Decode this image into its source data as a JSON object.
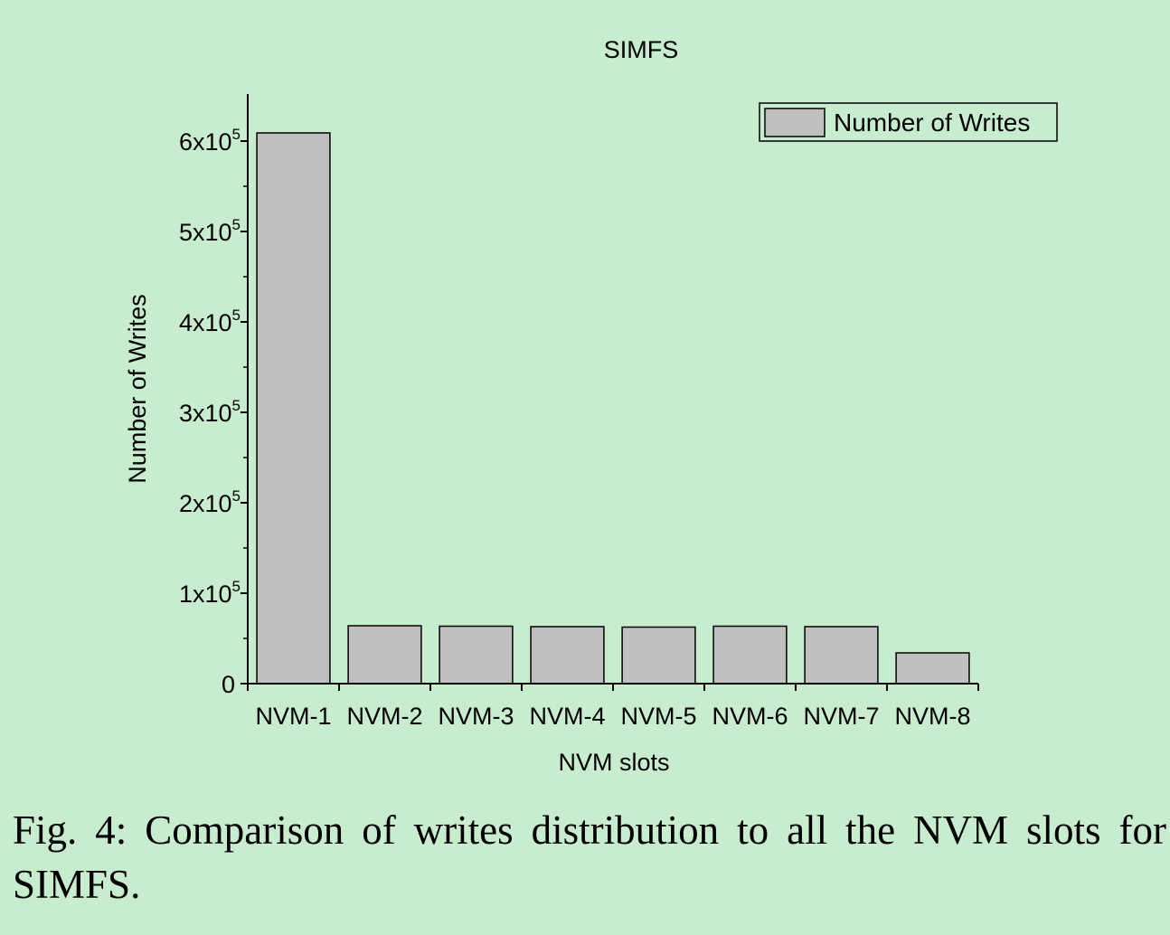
{
  "chart_data": {
    "type": "bar",
    "title": "SIMFS",
    "xlabel": "NVM slots",
    "ylabel": "Number of Writes",
    "categories": [
      "NVM-1",
      "NVM-2",
      "NVM-3",
      "NVM-4",
      "NVM-5",
      "NVM-6",
      "NVM-7",
      "NVM-8"
    ],
    "series": [
      {
        "name": "Number of Writes",
        "values": [
          609000,
          64000,
          63500,
          63000,
          62500,
          63500,
          63000,
          34000
        ],
        "color": "#c0c0c0"
      }
    ],
    "ylim": [
      0,
      650000
    ],
    "yticks": [
      {
        "value": 0,
        "label": "0",
        "exp": ""
      },
      {
        "value": 100000,
        "label": "1x10",
        "exp": "5"
      },
      {
        "value": 200000,
        "label": "2x10",
        "exp": "5"
      },
      {
        "value": 300000,
        "label": "3x10",
        "exp": "5"
      },
      {
        "value": 400000,
        "label": "4x10",
        "exp": "5"
      },
      {
        "value": 500000,
        "label": "5x10",
        "exp": "5"
      },
      {
        "value": 600000,
        "label": "6x10",
        "exp": "5"
      }
    ],
    "grid": false,
    "legend_position": "top-right"
  },
  "caption": "Fig. 4: Comparison of writes distribution to all the NVM slots for SIMFS."
}
